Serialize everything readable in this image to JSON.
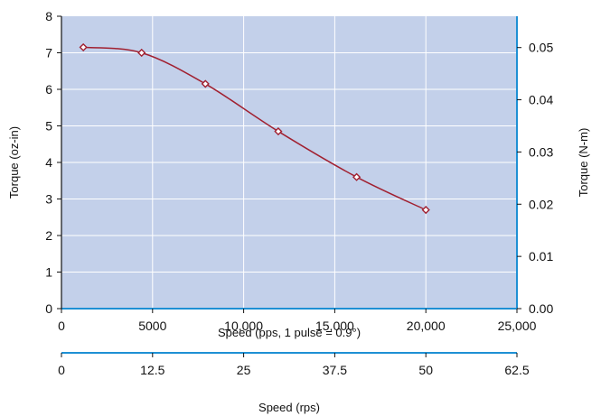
{
  "chart_data": {
    "type": "line",
    "series": [
      {
        "x": [
          1200,
          4400,
          7900,
          11900,
          16200,
          20000
        ],
        "y": [
          7.15,
          7.0,
          6.15,
          4.85,
          3.6,
          2.7
        ]
      }
    ],
    "x_axis": {
      "label": "Speed (pps, 1 pulse = 0.9°)",
      "range": [
        0,
        25000
      ],
      "ticks": [
        0,
        5000,
        10000,
        15000,
        20000,
        25000
      ],
      "tick_labels": [
        "0",
        "5000",
        "10,000",
        "15,000",
        "20,000",
        "25,000"
      ]
    },
    "y_axis": {
      "label": "Torque (oz-in)",
      "range": [
        0,
        8
      ],
      "ticks": [
        0,
        1,
        2,
        3,
        4,
        5,
        6,
        7,
        8
      ],
      "tick_labels": [
        "0",
        "1",
        "2",
        "3",
        "4",
        "5",
        "6",
        "7",
        "8"
      ]
    },
    "y2_axis": {
      "label": "Torque (N-m)",
      "range": [
        0.0,
        0.056
      ],
      "ticks": [
        0.0,
        0.01,
        0.02,
        0.03,
        0.04,
        0.05
      ],
      "tick_labels": [
        "0.00",
        "0.01",
        "0.02",
        "0.03",
        "0.04",
        "0.05"
      ]
    },
    "x2_axis": {
      "label": "Speed (rps)",
      "range": [
        0,
        62.5
      ],
      "ticks": [
        0,
        12.5,
        25,
        37.5,
        50,
        62.5
      ],
      "tick_labels": [
        "0",
        "12.5",
        "25",
        "37.5",
        "50",
        "62.5"
      ]
    },
    "grid": true,
    "legend": "none",
    "colors": {
      "plot_background": "#c3d0ea",
      "grid": "#ffffff",
      "line": "#a12030",
      "marker_fill": "#ffffff",
      "axis_accent": "#1e90d4",
      "axis": "#111111"
    }
  }
}
